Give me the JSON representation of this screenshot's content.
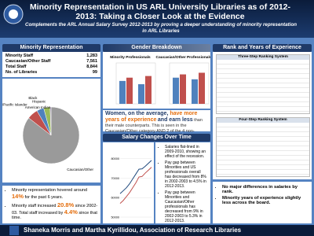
{
  "header": {
    "title": "Minority Representation in US ARL University Libraries as of 2012-2013: Taking a Closer Look at the Evidence",
    "subtitle": "Complements the ARL Annual Salary Survey 2012-2013 by proving a deeper understanding of minority representation in ARL Libraries"
  },
  "representation": {
    "heading": "Minority Representation",
    "rows": [
      [
        "Minority Staff",
        "1,283"
      ],
      [
        "Caucasian/Other Staff",
        "7,561"
      ],
      [
        "Total Staff",
        "8,844"
      ],
      [
        "No. of Libraries",
        "99"
      ]
    ],
    "pie": {
      "type": "pie",
      "categories": [
        "Caucasian/Other",
        "Asian/Pacific Islander",
        "Black",
        "Hispanic",
        "American Indian"
      ],
      "values": [
        85.5,
        6.2,
        4.1,
        3.7,
        0.5
      ],
      "colors": [
        "#9a9a9a",
        "#c0504d",
        "#4f81bd",
        "#9bbb59",
        "#8064a2"
      ]
    },
    "bullets": [
      [
        "Minority representation hovered around ",
        "14%",
        " for the past 6 years."
      ],
      [
        "Minority staff increased ",
        "20.8%",
        " since 2002-03. Total staff increased by ",
        "4.4%",
        " since that time."
      ]
    ]
  },
  "gender": {
    "heading": "Gender Breakdown",
    "charts": [
      {
        "type": "bar",
        "title": "Minority Professionals",
        "ylim": [
          0,
          25
        ],
        "colors": [
          "#4f81bd",
          "#c0504d"
        ],
        "series": [
          {
            "values": [
              14,
              16
            ]
          },
          {
            "values": [
              12,
              17
            ]
          }
        ]
      },
      {
        "type": "bar",
        "title": "Caucasian/Other Professionals",
        "ylim": [
          0,
          25
        ],
        "colors": [
          "#4f81bd",
          "#c0504d"
        ],
        "series": [
          {
            "values": [
              16,
              18
            ]
          },
          {
            "values": [
              15,
              19
            ]
          }
        ]
      }
    ],
    "text": [
      "Women, on the average, ",
      "have more years of experience",
      "and earn less",
      " than their male counterparts. This is seen in the Caucasian/Other category AND 2 of the 4 non-Caucasian categories."
    ]
  },
  "salary": {
    "heading": "Salary Changes Over Time",
    "chart": {
      "type": "line",
      "x": [
        2003,
        2004,
        2005,
        2006,
        2007,
        2008,
        2009,
        2010,
        2011,
        2012,
        2013
      ],
      "ylim": [
        50000,
        85000
      ],
      "yticks": [
        50000,
        60000,
        70000,
        80000
      ],
      "series": [
        {
          "color": "#1f497d",
          "values": [
            62000,
            63500,
            65000,
            67000,
            69500,
            72000,
            74500,
            74700,
            76000,
            77500,
            79000
          ]
        },
        {
          "color": "#c0504d",
          "values": [
            57000,
            58500,
            60500,
            62500,
            65000,
            67500,
            70500,
            70800,
            72500,
            74000,
            75500
          ]
        }
      ]
    },
    "bullets": [
      "Salaries flat-lined in 2009-2010, showing an effect of the recession.",
      "Pay gap between Minorities and US professionals overall has decreased from 8% in 2002-2003 to 4.5% in 2012-2013.",
      "Pay gap between Minorities and Caucasian/Other professionals has decreased from 9% in 2002-2003 to 5.3% in 2012-2013."
    ]
  },
  "rank": {
    "heading": "Rank and Years of Experience",
    "tables": [
      "Three-Step Ranking System",
      "Four-Step Ranking System"
    ],
    "bullets": [
      "No major differences in salaries by rank.",
      "Minority years of experience slightly less across the board."
    ]
  },
  "footer": {
    "authors": "Shaneka Morris and Martha Kyrillidou, Association of Research Libraries"
  }
}
